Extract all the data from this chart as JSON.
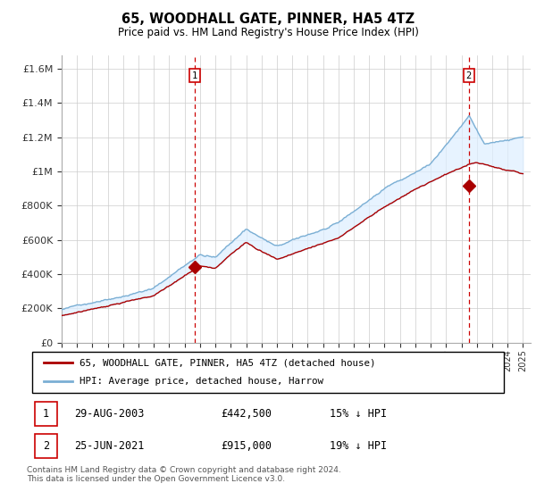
{
  "title": "65, WOODHALL GATE, PINNER, HA5 4TZ",
  "subtitle": "Price paid vs. HM Land Registry's House Price Index (HPI)",
  "ylabel_ticks": [
    "£0",
    "£200K",
    "£400K",
    "£600K",
    "£800K",
    "£1M",
    "£1.2M",
    "£1.4M",
    "£1.6M"
  ],
  "ytick_values": [
    0,
    200000,
    400000,
    600000,
    800000,
    1000000,
    1200000,
    1400000,
    1600000
  ],
  "ylim": [
    0,
    1680000
  ],
  "sale1_price": 442500,
  "sale1_x": 2003.66,
  "sale2_price": 915000,
  "sale2_x": 2021.48,
  "legend_label_red": "65, WOODHALL GATE, PINNER, HA5 4TZ (detached house)",
  "legend_label_blue": "HPI: Average price, detached house, Harrow",
  "footnote": "Contains HM Land Registry data © Crown copyright and database right 2024.\nThis data is licensed under the Open Government Licence v3.0.",
  "table_rows": [
    [
      "1",
      "29-AUG-2003",
      "£442,500",
      "15% ↓ HPI"
    ],
    [
      "2",
      "25-JUN-2021",
      "£915,000",
      "19% ↓ HPI"
    ]
  ],
  "red_color": "#aa0000",
  "blue_color": "#7bafd4",
  "fill_color": "#ddeeff",
  "background_color": "#ffffff",
  "grid_color": "#cccccc",
  "box_label_color": "#cc0000"
}
